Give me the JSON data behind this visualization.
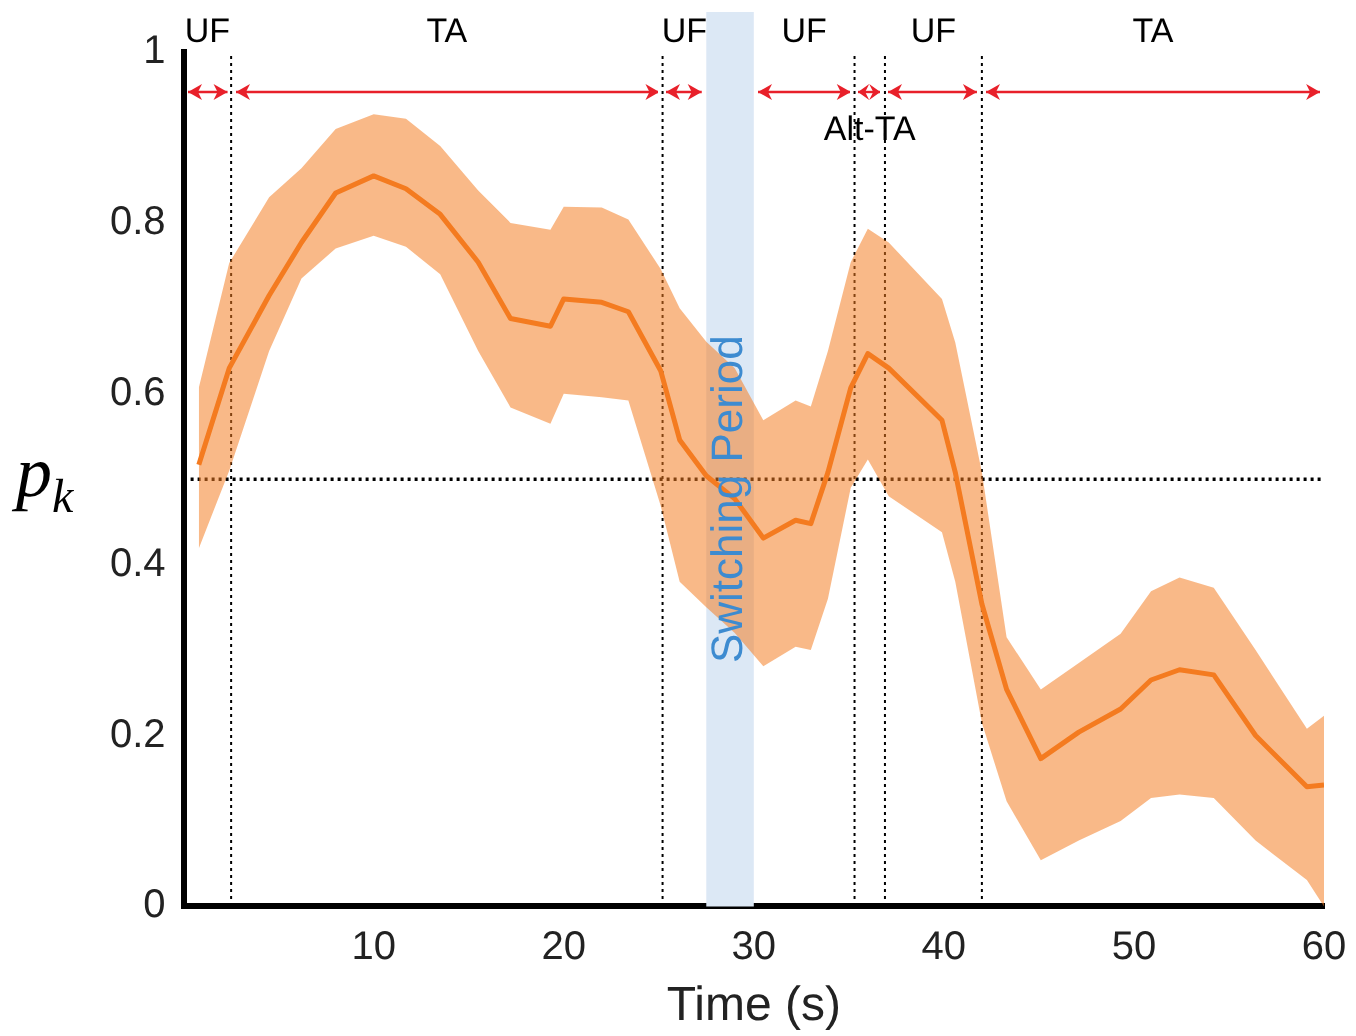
{
  "chart_data": {
    "type": "line",
    "xlabel": "Time (s)",
    "ylabel": "p$_{k}$",
    "xlim": [
      0,
      60
    ],
    "xticks": [
      10,
      20,
      30,
      40,
      50,
      60
    ],
    "ylim": [
      0,
      1
    ],
    "yticks": [
      0,
      0.2,
      0.4,
      0.6,
      0.8,
      1
    ],
    "grid": false,
    "legend": false,
    "marker": "none",
    "line_style": "solid",
    "x": [
      0.8,
      2.4,
      4.5,
      6.2,
      8,
      10,
      11.7,
      13.5,
      15.5,
      17.2,
      19.3,
      20,
      22,
      23.4,
      25.1,
      26.1,
      27.5,
      29,
      30.5,
      32.2,
      33,
      33.9,
      35.1,
      36,
      37.1,
      39.9,
      40.6,
      42,
      43.3,
      45.1,
      47.1,
      49.3,
      50.9,
      52.4,
      54.2,
      56.4,
      59.1,
      60
    ],
    "series": [
      {
        "color": "#f47b20",
        "values": [
          0.517,
          0.63,
          0.715,
          0.777,
          0.835,
          0.855,
          0.84,
          0.81,
          0.754,
          0.688,
          0.679,
          0.711,
          0.707,
          0.696,
          0.627,
          0.546,
          0.504,
          0.477,
          0.431,
          0.452,
          0.448,
          0.508,
          0.607,
          0.647,
          0.63,
          0.569,
          0.508,
          0.354,
          0.254,
          0.173,
          0.204,
          0.231,
          0.265,
          0.277,
          0.271,
          0.2,
          0.14,
          0.142
        ],
        "upper": [
          0.607,
          0.753,
          0.83,
          0.864,
          0.91,
          0.927,
          0.922,
          0.89,
          0.838,
          0.8,
          0.792,
          0.819,
          0.818,
          0.804,
          0.746,
          0.7,
          0.661,
          0.63,
          0.569,
          0.592,
          0.585,
          0.65,
          0.754,
          0.793,
          0.777,
          0.711,
          0.66,
          0.508,
          0.315,
          0.254,
          0.285,
          0.319,
          0.369,
          0.385,
          0.373,
          0.3,
          0.208,
          0.223
        ],
        "lower": [
          0.419,
          0.51,
          0.65,
          0.735,
          0.77,
          0.785,
          0.772,
          0.74,
          0.65,
          0.584,
          0.565,
          0.6,
          0.596,
          0.592,
          0.469,
          0.38,
          0.35,
          0.32,
          0.281,
          0.304,
          0.3,
          0.36,
          0.49,
          0.523,
          0.48,
          0.438,
          0.38,
          0.215,
          0.123,
          0.054,
          0.077,
          0.1,
          0.127,
          0.131,
          0.127,
          0.077,
          0.031,
          0.0
        ]
      }
    ],
    "ref_lines": [
      {
        "axis": "y",
        "value": 0.5,
        "color": "#000000",
        "line_style": "dotted"
      },
      {
        "axis": "x",
        "value": 2.5,
        "color": "#000000",
        "line_style": "dotted"
      },
      {
        "axis": "x",
        "value": 25.2,
        "color": "#000000",
        "line_style": "dotted"
      },
      {
        "axis": "x",
        "value": 35.3,
        "color": "#000000",
        "line_style": "dotted"
      },
      {
        "axis": "x",
        "value": 36.9,
        "color": "#000000",
        "line_style": "dotted"
      },
      {
        "axis": "x",
        "value": 42,
        "color": "#000000",
        "line_style": "dotted"
      }
    ],
    "bands": [
      {
        "axis": "x",
        "from": 27.5,
        "to": 30,
        "label": "Switching Period",
        "color": "#dce8f5"
      }
    ],
    "annotations": [
      {
        "text": "UF",
        "x": 2.5,
        "y": 0.953
      },
      "TA",
      {
        "text": "UF",
        "x": 27.5,
        "y": 0.953
      },
      {
        "text": "UF",
        "x": 30,
        "y": 0.953
      },
      {
        "text": "Alt-TA",
        "x": 36.9,
        "y": 0.953
      },
      {
        "text": "UF",
        "x": 42,
        "y": 0.953
      },
      "TA"
    ]
  }
}
